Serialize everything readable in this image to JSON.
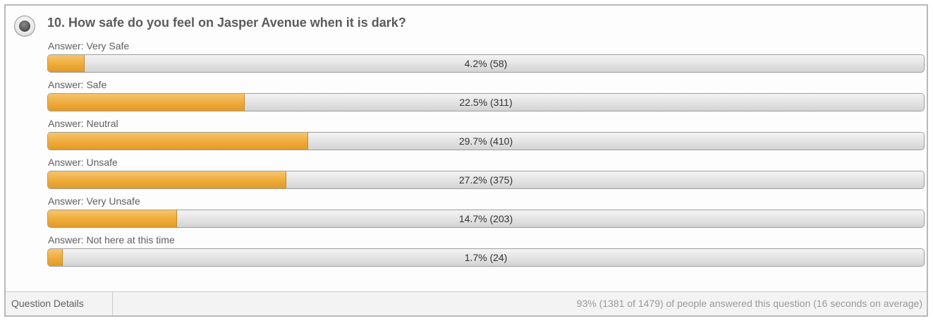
{
  "question": {
    "title": "10. How safe do you feel on Jasper Avenue when it is dark?",
    "icon": "radio-question-icon"
  },
  "answers": [
    {
      "label": "Answer: Very Safe",
      "percent": 4.2,
      "result": "4.2% (58)"
    },
    {
      "label": "Answer: Safe",
      "percent": 22.5,
      "result": "22.5% (311)"
    },
    {
      "label": "Answer: Neutral",
      "percent": 29.7,
      "result": "29.7% (410)"
    },
    {
      "label": "Answer: Unsafe",
      "percent": 27.2,
      "result": "27.2% (375)"
    },
    {
      "label": "Answer: Very Unsafe",
      "percent": 14.7,
      "result": "14.7% (203)"
    },
    {
      "label": "Answer: Not here at this time",
      "percent": 1.7,
      "result": "1.7% (24)"
    }
  ],
  "footer": {
    "details_label": "Question Details",
    "summary": "93% (1381 of 1479) of people answered this question (16 seconds on average)"
  },
  "colors": {
    "bar_fill": "#eeab3b",
    "bar_track": "#e4e4e4"
  }
}
